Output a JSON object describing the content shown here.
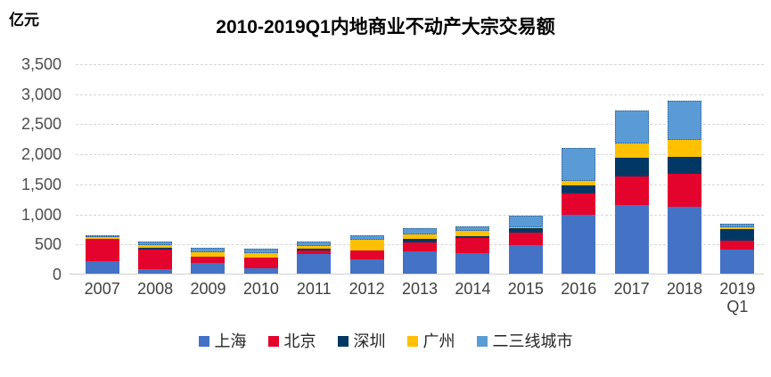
{
  "header": {
    "unit_label": "亿元",
    "title": "2010-2019Q1内地商业不动产大宗交易额"
  },
  "chart_data": {
    "type": "bar",
    "stacked": true,
    "title": "2010-2019Q1内地商业不动产大宗交易额",
    "ylabel": "亿元",
    "xlabel": "",
    "ylim": [
      0,
      3500
    ],
    "ytick_step": 500,
    "ytick_labels": [
      "0",
      "500",
      "1,000",
      "1,500",
      "2,000",
      "2,500",
      "3,000",
      "3,500"
    ],
    "grid": true,
    "legend_position": "bottom",
    "categories": [
      "2007",
      "2008",
      "2009",
      "2010",
      "2011",
      "2012",
      "2013",
      "2014",
      "2015",
      "2016",
      "2017",
      "2018",
      "2019\nQ1"
    ],
    "series": [
      {
        "name": "上海",
        "key": "shanghai",
        "color": "#4472C4",
        "values": [
          230,
          90,
          200,
          110,
          345,
          245,
          390,
          350,
          490,
          1000,
          1150,
          1120,
          415
        ]
      },
      {
        "name": "北京",
        "key": "beijing",
        "color": "#E4032D",
        "values": [
          365,
          320,
          100,
          175,
          50,
          150,
          140,
          260,
          210,
          355,
          475,
          560,
          150
        ]
      },
      {
        "name": "深圳",
        "key": "shenzhen",
        "color": "#003865",
        "values": [
          0,
          30,
          0,
          0,
          30,
          5,
          60,
          25,
          75,
          130,
          315,
          280,
          185
        ]
      },
      {
        "name": "广州",
        "key": "guangzhou",
        "color": "#FFC000",
        "values": [
          25,
          45,
          75,
          75,
          55,
          185,
          85,
          90,
          10,
          70,
          240,
          285,
          40
        ]
      },
      {
        "name": "二三线城市",
        "key": "tier23-cities",
        "color": "#5B9BD5",
        "border": "dotted",
        "values": [
          30,
          70,
          70,
          65,
          65,
          65,
          90,
          70,
          190,
          545,
          555,
          645,
          50
        ]
      }
    ],
    "totals": [
      650,
      555,
      445,
      425,
      545,
      650,
      765,
      795,
      975,
      2100,
      2735,
      2890,
      840
    ]
  },
  "colors": {
    "gridline": "#D6D6D6",
    "axis": "#CFCFCF",
    "ytick_text": "#4D4D4D",
    "xtick_text": "#404040",
    "title_text": "#000000"
  }
}
